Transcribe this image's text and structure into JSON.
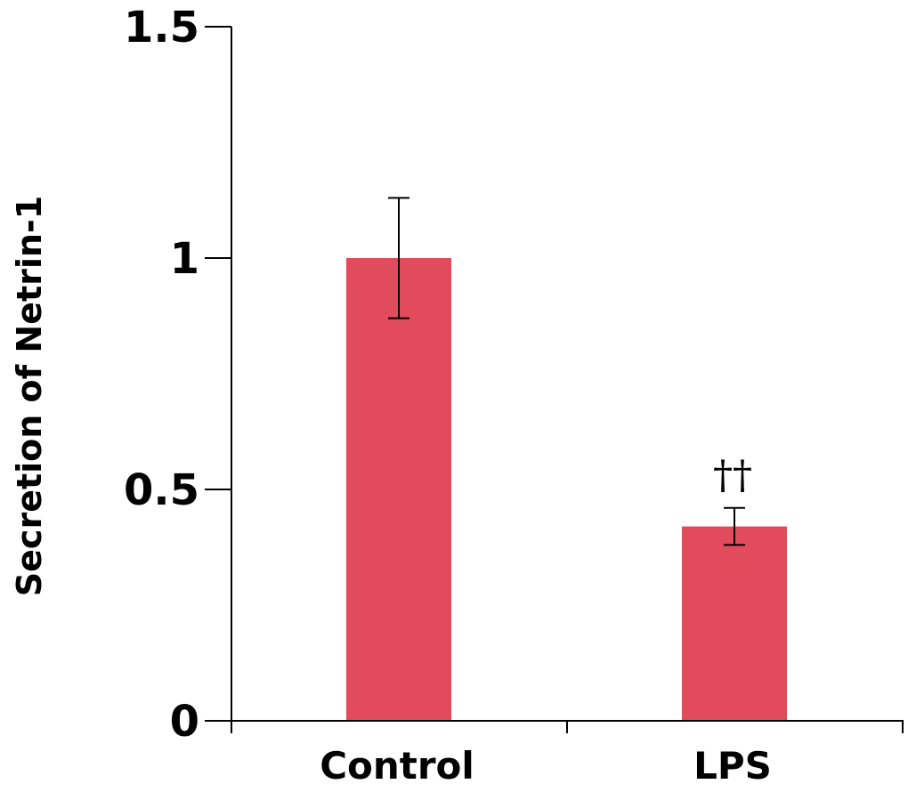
{
  "chart_data": {
    "type": "bar",
    "categories": [
      "Control",
      "LPS"
    ],
    "values": [
      1.0,
      0.42
    ],
    "errors": [
      0.13,
      0.04
    ],
    "annotations": [
      "",
      "††"
    ],
    "title": "",
    "xlabel": "",
    "ylabel": "Secretion of Netrin-1",
    "ylim": [
      0,
      1.5
    ],
    "yticks": [
      0,
      0.5,
      1,
      1.5
    ],
    "ytick_labels": [
      "0",
      "0.5",
      "1",
      "1.5"
    ],
    "grid": false,
    "bar_color": "#E24B5C",
    "axis_color": "#000000"
  }
}
